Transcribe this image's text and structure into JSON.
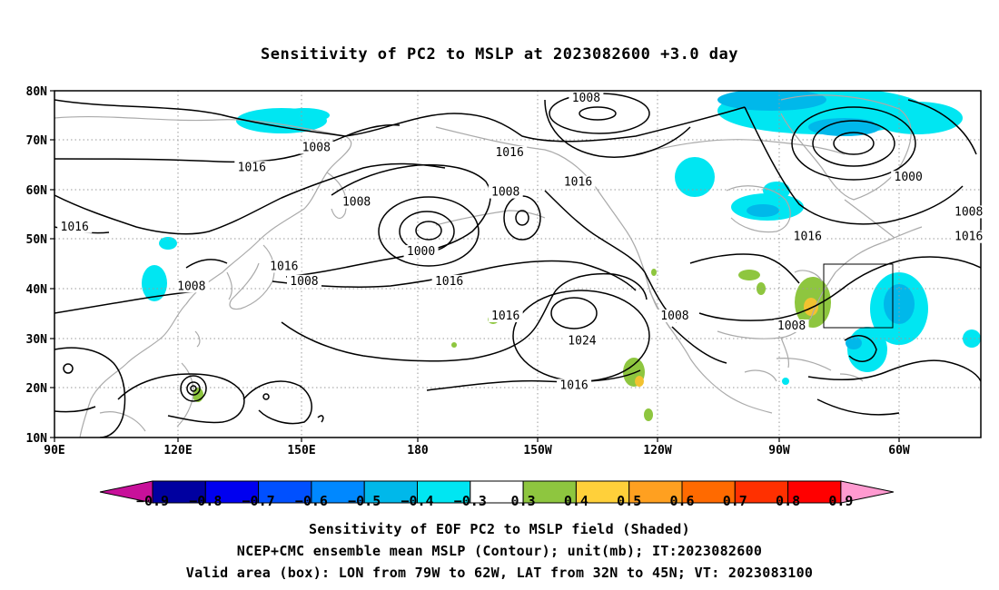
{
  "title": "Sensitivity of PC2 to MSLP at 2023082600 +3.0 day",
  "map": {
    "lat_ticks": [
      "80N",
      "70N",
      "60N",
      "50N",
      "40N",
      "30N",
      "20N",
      "10N"
    ],
    "lon_ticks": [
      "90E",
      "120E",
      "150E",
      "180",
      "150W",
      "120W",
      "90W",
      "60W"
    ],
    "lon_range": [
      "90E",
      "40W"
    ],
    "lat_range": [
      "10N",
      "80N"
    ],
    "contour_labels": [
      {
        "text": "1008",
        "lon": -138,
        "lat": 78
      },
      {
        "text": "1016",
        "lon": -157,
        "lat": 67
      },
      {
        "text": "1008",
        "lon": 155,
        "lat": 68
      },
      {
        "text": "1016",
        "lon": 139,
        "lat": 64
      },
      {
        "text": "1000",
        "lon": -58,
        "lat": 62
      },
      {
        "text": "1016",
        "lon": -140,
        "lat": 61
      },
      {
        "text": "1008",
        "lon": -158,
        "lat": 59
      },
      {
        "text": "1008",
        "lon": 165,
        "lat": 57
      },
      {
        "text": "1008",
        "lon": -43,
        "lat": 55
      },
      {
        "text": "1016",
        "lon": 95,
        "lat": 52
      },
      {
        "text": "1000",
        "lon": -179,
        "lat": 47
      },
      {
        "text": "1016",
        "lon": -83,
        "lat": 50
      },
      {
        "text": "1016",
        "lon": -43,
        "lat": 50
      },
      {
        "text": "1016",
        "lon": 147,
        "lat": 44
      },
      {
        "text": "1008",
        "lon": 124,
        "lat": 40
      },
      {
        "text": "1008",
        "lon": 152,
        "lat": 41
      },
      {
        "text": "1016",
        "lon": -172,
        "lat": 41
      },
      {
        "text": "1016",
        "lon": -158,
        "lat": 34
      },
      {
        "text": "1008",
        "lon": -116,
        "lat": 34
      },
      {
        "text": "1024",
        "lon": -139,
        "lat": 29
      },
      {
        "text": "1008",
        "lon": -87,
        "lat": 32
      },
      {
        "text": "1016",
        "lon": -141,
        "lat": 20
      }
    ],
    "valid_box": {
      "lon_min": -79,
      "lon_max": -62,
      "lat_min": 32,
      "lat_max": 45
    },
    "colors": {
      "negative_main": "#00e6f2",
      "negative_dark": "#00b8ea",
      "positive_low": "#8ec63f",
      "positive_mid": "#f2c230",
      "coast": "#aaaaaa"
    }
  },
  "colorbar": {
    "labels": [
      "-0.9",
      "-0.8",
      "-0.7",
      "-0.6",
      "-0.5",
      "-0.4",
      "-0.3",
      "0.3",
      "0.4",
      "0.5",
      "0.6",
      "0.7",
      "0.8",
      "0.9"
    ],
    "colors": [
      "#0000a0",
      "#0000f0",
      "#0050ff",
      "#0088ff",
      "#00b8ea",
      "#00e6f2",
      "#ffffff",
      "#8ec63f",
      "#ffd03a",
      "#ffa020",
      "#ff6a00",
      "#ff3000",
      "#ff0000"
    ],
    "left_tip": "#c8109a",
    "right_tip": "#ff9ad0"
  },
  "captions": [
    "Sensitivity of EOF PC2 to MSLP field (Shaded)",
    "NCEP+CMC ensemble mean MSLP (Contour); unit(mb); IT:2023082600",
    "Valid area (box): LON from 79W to 62W, LAT from 32N to 45N; VT: 2023083100"
  ]
}
